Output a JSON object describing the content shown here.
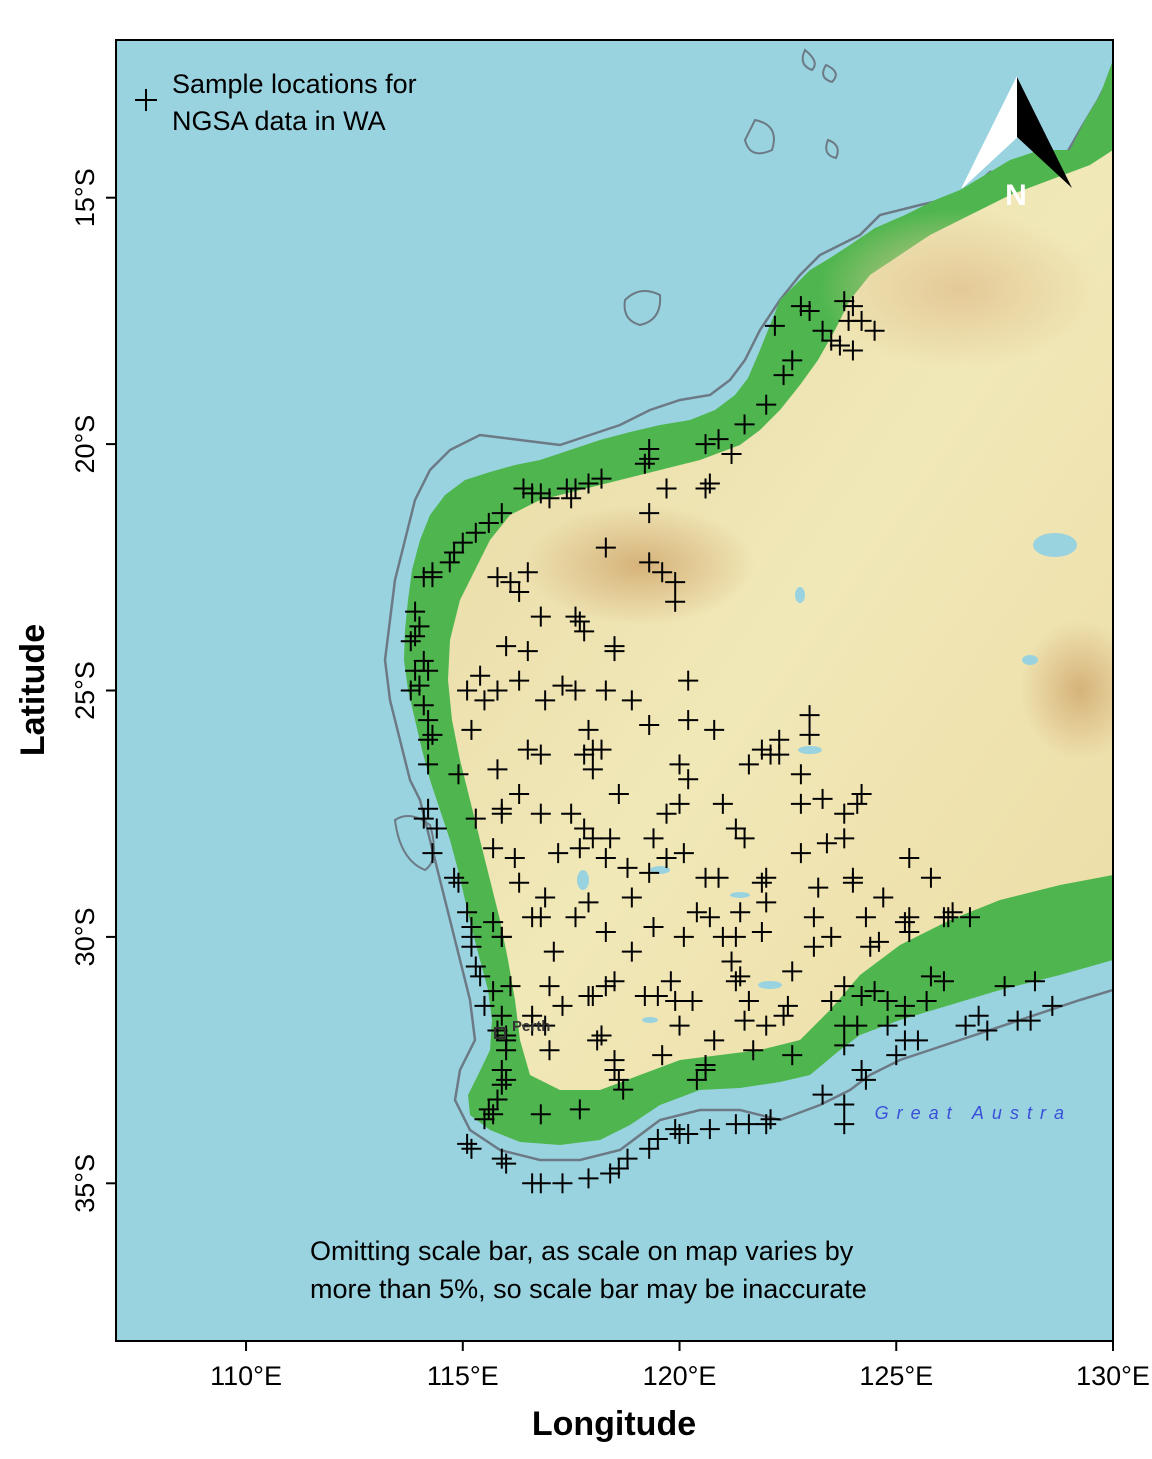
{
  "map": {
    "xlabel": "Longitude",
    "ylabel": "Latitude",
    "x_ticks": [
      "110°E",
      "115°E",
      "120°E",
      "125°E",
      "130°E"
    ],
    "y_ticks": [
      "15°S",
      "20°S",
      "25°S",
      "30°S",
      "35°S"
    ],
    "x_tick_values": [
      110,
      115,
      120,
      125,
      130
    ],
    "y_tick_values": [
      -15,
      -20,
      -25,
      -30,
      -35
    ],
    "lon_range": [
      107,
      130
    ],
    "lat_range": [
      -38.2,
      -11.8
    ],
    "legend": {
      "position": "top-left",
      "symbol": "+",
      "lines": [
        "Sample locations for",
        "NGSA data in WA"
      ]
    },
    "north_arrow": {
      "label": "N",
      "position": "top-right"
    },
    "place_labels": [
      {
        "name": "Perth",
        "lon": 115.86,
        "lat": -31.95
      }
    ],
    "sea_labels": [
      {
        "name": "Great Austra",
        "lon": 124.5,
        "lat": -33.7
      }
    ],
    "note_lines": [
      "Omitting scale bar, as scale on map varies by",
      "more than 5%, so scale bar may be inaccurate"
    ],
    "colors": {
      "ocean": "#9ad3e0",
      "coast_green": "#5cbf5a",
      "inland_yellow": "#f1e8b0",
      "uplands_tan": "#e2c58c",
      "shelf_line": "#6b7a85",
      "marker": "#000000"
    },
    "samples": [
      [
        122.8,
        -17.2
      ],
      [
        123.0,
        -17.3
      ],
      [
        123.8,
        -17.1
      ],
      [
        124.0,
        -17.2
      ],
      [
        123.9,
        -17.5
      ],
      [
        124.2,
        -17.5
      ],
      [
        124.5,
        -17.7
      ],
      [
        122.2,
        -17.6
      ],
      [
        123.3,
        -17.7
      ],
      [
        123.5,
        -17.9
      ],
      [
        123.7,
        -18.0
      ],
      [
        124.0,
        -18.1
      ],
      [
        122.6,
        -18.3
      ],
      [
        122.4,
        -18.6
      ],
      [
        122.0,
        -19.2
      ],
      [
        121.5,
        -19.6
      ],
      [
        120.9,
        -19.9
      ],
      [
        120.6,
        -20.0
      ],
      [
        121.2,
        -20.2
      ],
      [
        119.3,
        -20.1
      ],
      [
        119.2,
        -20.4
      ],
      [
        119.3,
        -20.3
      ],
      [
        118.2,
        -20.7
      ],
      [
        117.9,
        -20.8
      ],
      [
        117.6,
        -20.9
      ],
      [
        117.4,
        -20.9
      ],
      [
        116.8,
        -21.0
      ],
      [
        116.4,
        -20.9
      ],
      [
        116.6,
        -21.0
      ],
      [
        117.0,
        -21.1
      ],
      [
        117.5,
        -21.1
      ],
      [
        119.7,
        -20.9
      ],
      [
        120.7,
        -20.8
      ],
      [
        120.6,
        -20.9
      ],
      [
        119.3,
        -21.4
      ],
      [
        115.9,
        -21.4
      ],
      [
        115.6,
        -21.6
      ],
      [
        115.3,
        -21.8
      ],
      [
        115.0,
        -22.0
      ],
      [
        114.8,
        -22.2
      ],
      [
        114.7,
        -22.4
      ],
      [
        114.3,
        -22.6
      ],
      [
        114.1,
        -22.7
      ],
      [
        114.3,
        -22.7
      ],
      [
        115.8,
        -22.7
      ],
      [
        116.1,
        -22.8
      ],
      [
        116.5,
        -22.6
      ],
      [
        116.3,
        -23.0
      ],
      [
        118.3,
        -22.1
      ],
      [
        119.3,
        -22.4
      ],
      [
        119.6,
        -22.6
      ],
      [
        119.9,
        -22.8
      ],
      [
        119.9,
        -23.2
      ],
      [
        113.9,
        -23.4
      ],
      [
        113.9,
        -23.9
      ],
      [
        113.8,
        -24.0
      ],
      [
        114.0,
        -23.7
      ],
      [
        114.1,
        -24.4
      ],
      [
        113.9,
        -24.6
      ],
      [
        114.2,
        -24.6
      ],
      [
        114.0,
        -24.9
      ],
      [
        113.8,
        -25.0
      ],
      [
        114.1,
        -25.3
      ],
      [
        114.2,
        -25.6
      ],
      [
        114.3,
        -25.9
      ],
      [
        114.2,
        -26.0
      ],
      [
        114.2,
        -26.5
      ],
      [
        116.8,
        -23.5
      ],
      [
        117.6,
        -23.5
      ],
      [
        117.7,
        -23.6
      ],
      [
        117.8,
        -23.8
      ],
      [
        118.5,
        -24.1
      ],
      [
        118.5,
        -24.2
      ],
      [
        116.0,
        -24.1
      ],
      [
        116.5,
        -24.2
      ],
      [
        115.4,
        -24.7
      ],
      [
        116.3,
        -24.8
      ],
      [
        117.3,
        -24.9
      ],
      [
        117.6,
        -25.0
      ],
      [
        118.3,
        -25.0
      ],
      [
        118.9,
        -25.2
      ],
      [
        120.2,
        -24.8
      ],
      [
        116.9,
        -25.2
      ],
      [
        115.1,
        -25.0
      ],
      [
        115.5,
        -25.2
      ],
      [
        115.8,
        -25.0
      ],
      [
        115.2,
        -25.8
      ],
      [
        117.9,
        -25.8
      ],
      [
        119.3,
        -25.7
      ],
      [
        120.2,
        -25.6
      ],
      [
        120.8,
        -25.8
      ],
      [
        123.0,
        -25.5
      ],
      [
        123.0,
        -25.9
      ],
      [
        118.0,
        -26.2
      ],
      [
        118.2,
        -26.2
      ],
      [
        117.8,
        -26.3
      ],
      [
        116.5,
        -26.2
      ],
      [
        116.8,
        -26.3
      ],
      [
        114.9,
        -26.7
      ],
      [
        115.8,
        -26.6
      ],
      [
        118.0,
        -26.6
      ],
      [
        120.0,
        -26.5
      ],
      [
        120.2,
        -26.8
      ],
      [
        121.6,
        -26.5
      ],
      [
        121.9,
        -26.2
      ],
      [
        122.1,
        -26.3
      ],
      [
        122.3,
        -26.3
      ],
      [
        122.3,
        -26.0
      ],
      [
        122.8,
        -26.7
      ],
      [
        114.2,
        -27.4
      ],
      [
        114.1,
        -27.6
      ],
      [
        114.4,
        -27.8
      ],
      [
        115.3,
        -27.6
      ],
      [
        115.9,
        -27.5
      ],
      [
        115.9,
        -27.4
      ],
      [
        116.3,
        -27.1
      ],
      [
        116.8,
        -27.5
      ],
      [
        117.5,
        -27.5
      ],
      [
        117.8,
        -27.8
      ],
      [
        118.6,
        -27.1
      ],
      [
        119.7,
        -27.5
      ],
      [
        120.0,
        -27.3
      ],
      [
        121.0,
        -27.3
      ],
      [
        122.8,
        -27.3
      ],
      [
        123.3,
        -27.2
      ],
      [
        124.1,
        -27.3
      ],
      [
        124.2,
        -27.1
      ],
      [
        123.8,
        -27.5
      ],
      [
        114.3,
        -28.3
      ],
      [
        115.7,
        -28.2
      ],
      [
        116.2,
        -28.4
      ],
      [
        117.2,
        -28.3
      ],
      [
        117.7,
        -28.2
      ],
      [
        118.0,
        -28.0
      ],
      [
        118.3,
        -28.4
      ],
      [
        118.4,
        -28.0
      ],
      [
        119.4,
        -28.0
      ],
      [
        119.7,
        -28.4
      ],
      [
        120.1,
        -28.3
      ],
      [
        121.3,
        -27.8
      ],
      [
        121.5,
        -28.0
      ],
      [
        122.8,
        -28.3
      ],
      [
        123.4,
        -28.1
      ],
      [
        123.8,
        -28.0
      ],
      [
        125.3,
        -28.4
      ],
      [
        125.8,
        -28.8
      ],
      [
        114.8,
        -28.8
      ],
      [
        114.9,
        -28.9
      ],
      [
        116.3,
        -28.9
      ],
      [
        118.8,
        -28.6
      ],
      [
        119.3,
        -28.7
      ],
      [
        120.6,
        -28.8
      ],
      [
        120.9,
        -28.8
      ],
      [
        121.9,
        -28.9
      ],
      [
        122.0,
        -28.8
      ],
      [
        123.2,
        -29.0
      ],
      [
        124.0,
        -28.8
      ],
      [
        124.0,
        -28.9
      ],
      [
        116.9,
        -29.2
      ],
      [
        117.9,
        -29.3
      ],
      [
        115.1,
        -29.5
      ],
      [
        115.7,
        -29.7
      ],
      [
        116.6,
        -29.6
      ],
      [
        116.8,
        -29.6
      ],
      [
        117.6,
        -29.6
      ],
      [
        118.9,
        -29.2
      ],
      [
        120.4,
        -29.5
      ],
      [
        120.7,
        -29.6
      ],
      [
        121.4,
        -29.5
      ],
      [
        122.0,
        -29.3
      ],
      [
        123.1,
        -29.6
      ],
      [
        124.3,
        -29.6
      ],
      [
        124.7,
        -29.2
      ],
      [
        125.3,
        -29.6
      ],
      [
        125.2,
        -29.7
      ],
      [
        126.1,
        -29.6
      ],
      [
        126.3,
        -29.5
      ],
      [
        126.2,
        -29.6
      ],
      [
        126.7,
        -29.6
      ],
      [
        115.2,
        -29.8
      ],
      [
        115.2,
        -30.0
      ],
      [
        115.2,
        -30.2
      ],
      [
        115.3,
        -30.6
      ],
      [
        115.9,
        -30.0
      ],
      [
        115.9,
        -30.0
      ],
      [
        117.1,
        -30.3
      ],
      [
        118.3,
        -29.9
      ],
      [
        119.4,
        -29.8
      ],
      [
        120.1,
        -30.0
      ],
      [
        121.0,
        -30.0
      ],
      [
        121.3,
        -30.0
      ],
      [
        121.9,
        -29.9
      ],
      [
        123.1,
        -30.2
      ],
      [
        123.5,
        -30.0
      ],
      [
        124.4,
        -30.2
      ],
      [
        124.6,
        -30.1
      ],
      [
        125.3,
        -29.9
      ],
      [
        118.9,
        -30.3
      ],
      [
        121.2,
        -30.5
      ],
      [
        122.6,
        -30.7
      ],
      [
        115.4,
        -30.8
      ],
      [
        115.7,
        -31.1
      ],
      [
        116.1,
        -31.0
      ],
      [
        117.0,
        -31.0
      ],
      [
        117.9,
        -31.2
      ],
      [
        118.5,
        -30.9
      ],
      [
        119.2,
        -31.2
      ],
      [
        119.8,
        -30.9
      ],
      [
        121.3,
        -30.9
      ],
      [
        121.4,
        -30.8
      ],
      [
        123.8,
        -31.0
      ],
      [
        124.5,
        -31.1
      ],
      [
        125.7,
        -31.3
      ],
      [
        125.8,
        -30.8
      ],
      [
        126.1,
        -30.9
      ],
      [
        127.5,
        -31.0
      ],
      [
        128.2,
        -30.9
      ],
      [
        115.5,
        -31.4
      ],
      [
        115.9,
        -31.6
      ],
      [
        116.6,
        -31.6
      ],
      [
        117.3,
        -31.4
      ],
      [
        118.0,
        -31.2
      ],
      [
        118.3,
        -31.0
      ],
      [
        119.5,
        -31.2
      ],
      [
        119.9,
        -31.3
      ],
      [
        120.3,
        -31.3
      ],
      [
        121.6,
        -31.3
      ],
      [
        122.5,
        -31.4
      ],
      [
        123.5,
        -31.3
      ],
      [
        124.2,
        -31.2
      ],
      [
        124.8,
        -31.3
      ],
      [
        125.2,
        -31.4
      ],
      [
        128.6,
        -31.4
      ],
      [
        115.8,
        -31.9
      ],
      [
        116.0,
        -32.0
      ],
      [
        116.6,
        -31.8
      ],
      [
        116.9,
        -31.8
      ],
      [
        118.1,
        -32.1
      ],
      [
        118.2,
        -32.0
      ],
      [
        120.0,
        -31.8
      ],
      [
        120.8,
        -32.1
      ],
      [
        121.5,
        -31.7
      ],
      [
        122.0,
        -31.8
      ],
      [
        122.4,
        -31.6
      ],
      [
        123.8,
        -31.8
      ],
      [
        124.1,
        -31.8
      ],
      [
        124.8,
        -31.8
      ],
      [
        125.2,
        -31.6
      ],
      [
        126.6,
        -31.8
      ],
      [
        126.9,
        -31.6
      ],
      [
        127.1,
        -31.9
      ],
      [
        127.8,
        -31.7
      ],
      [
        128.1,
        -31.7
      ],
      [
        116.0,
        -32.1
      ],
      [
        116.0,
        -32.3
      ],
      [
        117.0,
        -32.3
      ],
      [
        118.5,
        -32.5
      ],
      [
        119.6,
        -32.4
      ],
      [
        120.6,
        -32.6
      ],
      [
        121.7,
        -32.3
      ],
      [
        122.6,
        -32.4
      ],
      [
        123.8,
        -32.2
      ],
      [
        124.2,
        -32.7
      ],
      [
        124.3,
        -32.9
      ],
      [
        125.2,
        -32.1
      ],
      [
        125.5,
        -32.1
      ],
      [
        125.0,
        -32.4
      ],
      [
        115.9,
        -32.7
      ],
      [
        115.9,
        -33.0
      ],
      [
        116.0,
        -32.9
      ],
      [
        118.5,
        -32.7
      ],
      [
        118.6,
        -32.9
      ],
      [
        118.7,
        -33.1
      ],
      [
        120.4,
        -32.9
      ],
      [
        120.6,
        -32.7
      ],
      [
        123.3,
        -33.2
      ],
      [
        123.8,
        -33.4
      ],
      [
        115.8,
        -33.3
      ],
      [
        115.7,
        -33.6
      ],
      [
        115.5,
        -33.7
      ],
      [
        115.6,
        -33.5
      ],
      [
        116.8,
        -33.6
      ],
      [
        117.7,
        -33.5
      ],
      [
        119.9,
        -33.9
      ],
      [
        120.2,
        -34.0
      ],
      [
        120.7,
        -33.9
      ],
      [
        121.3,
        -33.8
      ],
      [
        121.6,
        -33.8
      ],
      [
        122.0,
        -33.8
      ],
      [
        122.1,
        -33.7
      ],
      [
        123.8,
        -33.8
      ],
      [
        115.1,
        -34.2
      ],
      [
        115.2,
        -34.3
      ],
      [
        119.5,
        -34.1
      ],
      [
        119.3,
        -34.3
      ],
      [
        120.0,
        -34.0
      ],
      [
        118.8,
        -34.5
      ],
      [
        118.6,
        -34.7
      ],
      [
        115.9,
        -34.5
      ],
      [
        116.0,
        -34.6
      ],
      [
        116.6,
        -35.0
      ],
      [
        116.8,
        -35.0
      ],
      [
        117.3,
        -35.0
      ],
      [
        117.9,
        -34.9
      ],
      [
        118.4,
        -34.8
      ]
    ]
  }
}
